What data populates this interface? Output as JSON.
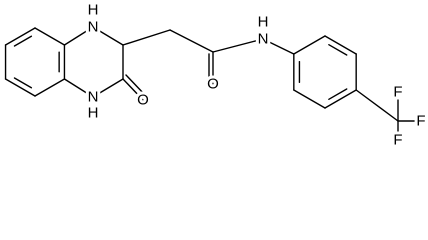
{
  "atoms": [
    {
      "label": "H"
    },
    {
      "label": "N"
    },
    {
      "label": "N"
    },
    {
      "label": "H"
    },
    {
      "label": "O"
    },
    {
      "label": "O"
    },
    {
      "label": "H"
    },
    {
      "label": "N"
    },
    {
      "label": "F"
    },
    {
      "label": "F"
    },
    {
      "label": "F"
    }
  ]
}
